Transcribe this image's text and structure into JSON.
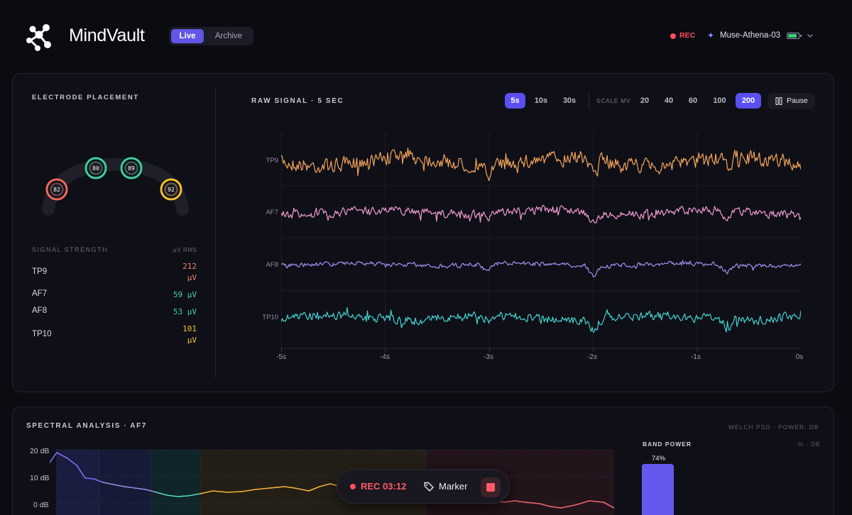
{
  "header": {
    "app_title": "MindVault",
    "modes": [
      {
        "label": "Live",
        "active": true
      },
      {
        "label": "Archive",
        "active": false
      }
    ],
    "rec_label": "REC",
    "device_name": "Muse-Athena-03",
    "battery_level": 0.85,
    "icons": {
      "logo": "molecule-logo-icon",
      "device": "sparkle-icon",
      "battery": "battery-icon",
      "dropdown": "chevron-down-icon"
    }
  },
  "electrode": {
    "title": "ELECTRODE PLACEMENT",
    "nodes": [
      {
        "id": "TP9",
        "value": "82",
        "color": "#f0695f"
      },
      {
        "id": "AF7",
        "value": "80",
        "color": "#3fcf9a"
      },
      {
        "id": "AF8",
        "value": "89",
        "color": "#3fcf9a"
      },
      {
        "id": "TP10",
        "value": "92",
        "color": "#f2c12e"
      }
    ]
  },
  "signal_strength": {
    "title": "SIGNAL STRENGTH",
    "unit": "µV RMS",
    "rows": [
      {
        "name": "TP9",
        "value": "212",
        "unit": "µV",
        "color": "#f0806b"
      },
      {
        "name": "AF7",
        "value": "59",
        "unit": "µV",
        "color": "#43d3a2"
      },
      {
        "name": "AF8",
        "value": "53",
        "unit": "µV",
        "color": "#43d3a2"
      },
      {
        "name": "TP10",
        "value": "101",
        "unit": "µV",
        "color": "#f2c12e"
      }
    ]
  },
  "raw_signal": {
    "title": "RAW SIGNAL · 5 SEC",
    "windows": [
      {
        "label": "5s",
        "active": true
      },
      {
        "label": "10s",
        "active": false
      },
      {
        "label": "30s",
        "active": false
      }
    ],
    "scale_label": "SCALE MV",
    "scales": [
      {
        "label": "20",
        "active": false
      },
      {
        "label": "40",
        "active": false
      },
      {
        "label": "60",
        "active": false
      },
      {
        "label": "100",
        "active": false
      },
      {
        "label": "200",
        "active": true
      }
    ],
    "pause_label": "Pause",
    "channels": [
      {
        "name": "TP9",
        "color": "#f4a45a"
      },
      {
        "name": "AF7",
        "color": "#ef9bd0"
      },
      {
        "name": "AF8",
        "color": "#9f93f2"
      },
      {
        "name": "TP10",
        "color": "#45d3cf"
      }
    ],
    "x_ticks": [
      "-5s",
      "-4s",
      "-3s",
      "-2s",
      "-1s",
      "0s"
    ]
  },
  "spectral": {
    "title": "SPECTRAL ANALYSIS · AF7",
    "subtitle": "WELCH PSD · POWER, DB",
    "y_ticks": [
      "20 dB",
      "10 dB",
      "0 dB"
    ],
    "band_power_title": "BAND POWER",
    "band_power_unit": "% · DB",
    "band_power_value": "74%"
  },
  "recording": {
    "time": "REC 03:12",
    "marker_label": "Marker"
  }
}
